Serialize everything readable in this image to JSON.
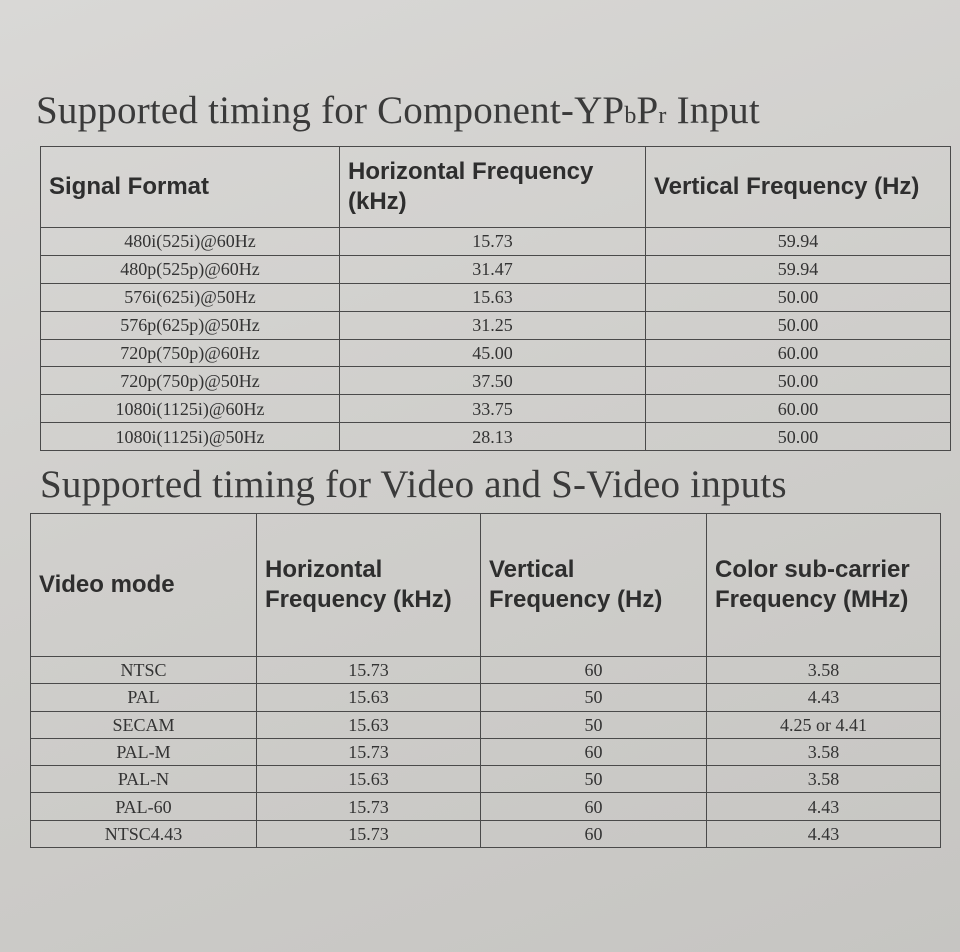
{
  "table1": {
    "title": "Supported timing for Component-YP",
    "title_sub1": "b",
    "title_mid": "P",
    "title_sub2": "r",
    "title_end": " Input",
    "headers": [
      "Signal Format",
      "Horizontal Frequency (kHz)",
      "Vertical Frequency (Hz)"
    ],
    "rows": [
      [
        "480i(525i)@60Hz",
        "15.73",
        "59.94"
      ],
      [
        "480p(525p)@60Hz",
        "31.47",
        "59.94"
      ],
      [
        "576i(625i)@50Hz",
        "15.63",
        "50.00"
      ],
      [
        "576p(625p)@50Hz",
        "31.25",
        "50.00"
      ],
      [
        "720p(750p)@60Hz",
        "45.00",
        "60.00"
      ],
      [
        "720p(750p)@50Hz",
        "37.50",
        "50.00"
      ],
      [
        "1080i(1125i)@60Hz",
        "33.75",
        "60.00"
      ],
      [
        "1080i(1125i)@50Hz",
        "28.13",
        "50.00"
      ]
    ]
  },
  "table2": {
    "title": "Supported timing for Video and S-Video inputs",
    "headers": [
      "Video mode",
      "Horizontal Frequency (kHz)",
      "Vertical Frequency (Hz)",
      "Color sub-carrier Frequency (MHz)"
    ],
    "rows": [
      [
        "NTSC",
        "15.73",
        "60",
        "3.58"
      ],
      [
        "PAL",
        "15.63",
        "50",
        "4.43"
      ],
      [
        "SECAM",
        "15.63",
        "50",
        "4.25 or 4.41"
      ],
      [
        "PAL-M",
        "15.73",
        "60",
        "3.58"
      ],
      [
        "PAL-N",
        "15.63",
        "50",
        "3.58"
      ],
      [
        "PAL-60",
        "15.73",
        "60",
        "4.43"
      ],
      [
        "NTSC4.43",
        "15.73",
        "60",
        "4.43"
      ]
    ]
  }
}
